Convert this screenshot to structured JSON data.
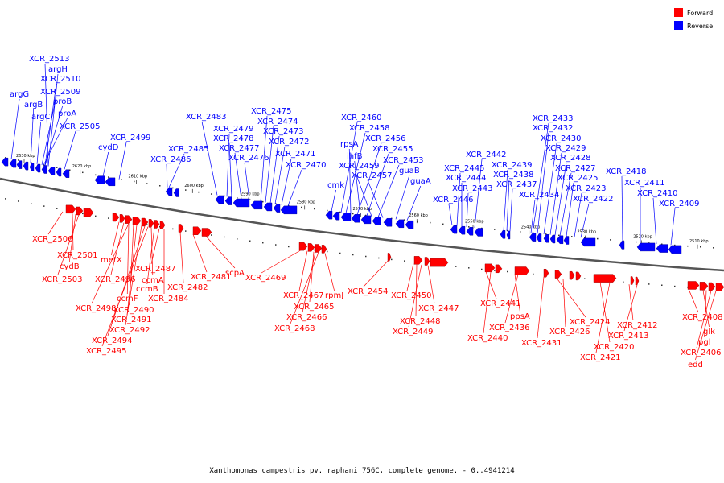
{
  "legend": {
    "items": [
      {
        "label": "Forward",
        "color": "#ff0000"
      },
      {
        "label": "Reverse",
        "color": "#0000ff"
      }
    ]
  },
  "caption": "Xanthomonas campestris pv. raphani 756C, complete genome. - 0..4941214",
  "colors": {
    "forward": "#ff0000",
    "reverse": "#0000ff",
    "backbone": "#555555"
  },
  "ticks": [
    {
      "pos": 2630,
      "label": "2630 kbp"
    },
    {
      "pos": 2620,
      "label": "2620 kbp"
    },
    {
      "pos": 2610,
      "label": "2610 kbp"
    },
    {
      "pos": 2600,
      "label": "2600 kbp"
    },
    {
      "pos": 2590,
      "label": "2590 kbp"
    },
    {
      "pos": 2580,
      "label": "2580 kbp"
    },
    {
      "pos": 2570,
      "label": "2570 kbp"
    },
    {
      "pos": 2560,
      "label": "2560 kbp"
    },
    {
      "pos": 2550,
      "label": "2550 kbp"
    },
    {
      "pos": 2540,
      "label": "2540 kbp"
    },
    {
      "pos": 2530,
      "label": "2530 kbp"
    },
    {
      "pos": 2520,
      "label": "2520 kbp"
    },
    {
      "pos": 2510,
      "label": "2510 kbp"
    }
  ],
  "reverse_labels": [
    "XCR_2513",
    "argH",
    "XCR_2510",
    "XCR_2509",
    "argG",
    "proB",
    "argB",
    "proA",
    "argC",
    "XCR_2505",
    "XCR_2499",
    "cydD",
    "XCR_2485",
    "XCR_2486",
    "XCR_2483",
    "XCR_2479",
    "XCR_2478",
    "XCR_2477",
    "XCR_2476",
    "XCR_2475",
    "XCR_2474",
    "XCR_2473",
    "XCR_2472",
    "XCR_2471",
    "XCR_2470",
    "XCR_2460",
    "XCR_2458",
    "rpsA",
    "XCR_2456",
    "ihfB",
    "XCR_2455",
    "XCR_2459",
    "XCR_2453",
    "XCR_2457",
    "guaB",
    "cmk",
    "guaA",
    "XCR_2442",
    "XCR_2445",
    "XCR_2444",
    "XCR_2443",
    "XCR_2446",
    "XCR_2439",
    "XCR_2438",
    "XCR_2437",
    "XCR_2434",
    "XCR_2433",
    "XCR_2432",
    "XCR_2430",
    "XCR_2429",
    "XCR_2428",
    "XCR_2427",
    "XCR_2425",
    "XCR_2423",
    "XCR_2422",
    "XCR_2418",
    "XCR_2411",
    "XCR_2410",
    "XCR_2409"
  ],
  "forward_labels": [
    "XCR_2506",
    "XCR_2501",
    "cydB",
    "XCR_2503",
    "metX",
    "XCR_2496",
    "XCR_2498",
    "ccmF",
    "XCR_2490",
    "XCR_2491",
    "XCR_2492",
    "XCR_2494",
    "XCR_2495",
    "ccmA",
    "ccmB",
    "XCR_2487",
    "XCR_2484",
    "XCR_2482",
    "XCR_2481",
    "scpA",
    "XCR_2469",
    "XCR_2467",
    "XCR_2465",
    "XCR_2466",
    "XCR_2468",
    "rpmJ",
    "XCR_2454",
    "XCR_2450",
    "XCR_2448",
    "XCR_2449",
    "XCR_2447",
    "XCR_2441",
    "XCR_2440",
    "ppsA",
    "XCR_2436",
    "XCR_2431",
    "XCR_2424",
    "XCR_2426",
    "XCR_2420",
    "XCR_2421",
    "XCR_2412",
    "XCR_2413",
    "XCR_2408",
    "glk",
    "pgl",
    "XCR_2406",
    "edd"
  ]
}
